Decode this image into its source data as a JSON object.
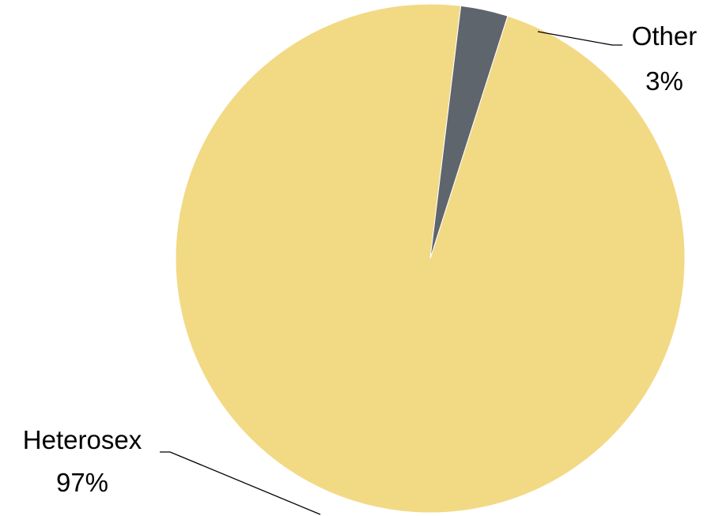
{
  "chart_data": {
    "type": "pie",
    "slices": [
      {
        "label": "Heterosex",
        "value": 97,
        "value_label": "97%",
        "color": "#F2D984"
      },
      {
        "label": "Other",
        "value": 3,
        "value_label": "3%",
        "color": "#5F656C"
      }
    ],
    "start_angle_deg": 17.7,
    "direction": "clockwise",
    "data_labels": "outside-with-leader-lines",
    "legend": "none"
  }
}
